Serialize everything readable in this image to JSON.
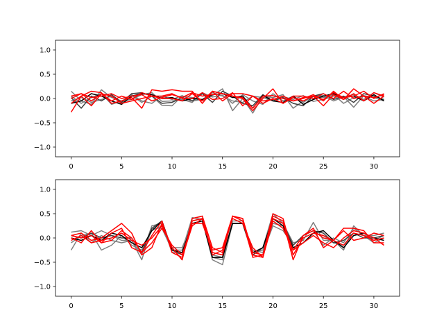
{
  "chart_data": [
    {
      "type": "line",
      "name": "top-panel",
      "xlim": [
        -1.55,
        32.55
      ],
      "ylim": [
        -1.2,
        1.2
      ],
      "xticks": [
        0,
        5,
        10,
        15,
        20,
        25,
        30
      ],
      "yticks": [
        -1.0,
        -0.5,
        0.0,
        0.5,
        1.0
      ],
      "xtick_labels": [
        "0",
        "5",
        "10",
        "15",
        "20",
        "25",
        "30"
      ],
      "ytick_labels": [
        "−1.0",
        "−0.5",
        "0.0",
        "0.5",
        "1.0"
      ],
      "x": [
        0,
        1,
        2,
        3,
        4,
        5,
        6,
        7,
        8,
        9,
        10,
        11,
        12,
        13,
        14,
        15,
        16,
        17,
        18,
        19,
        20,
        21,
        22,
        23,
        24,
        25,
        26,
        27,
        28,
        29,
        30,
        31
      ],
      "series": [
        {
          "color": "#7f7f7f",
          "values": [
            0.15,
            -0.05,
            -0.12,
            0.18,
            0.02,
            -0.05,
            0.06,
            -0.08,
            0.05,
            -0.14,
            -0.15,
            0.05,
            0.02,
            -0.05,
            0.06,
            0.2,
            -0.25,
            0.0,
            -0.3,
            0.05,
            0.02,
            0.08,
            -0.2,
            -0.05,
            0.04,
            0.06,
            -0.05,
            0.03,
            0.08,
            -0.02,
            0.12,
            0.03
          ]
        },
        {
          "color": "#7f7f7f",
          "values": [
            0.05,
            -0.1,
            0.02,
            0.1,
            -0.12,
            -0.05,
            -0.02,
            0.08,
            0.12,
            -0.06,
            -0.05,
            -0.02,
            -0.08,
            0.12,
            0.03,
            0.07,
            -0.1,
            0.08,
            -0.05,
            -0.12,
            0.1,
            -0.05,
            0.05,
            -0.08,
            0.05,
            0.02,
            0.08,
            -0.1,
            0.02,
            0.05,
            -0.05,
            -0.02
          ]
        },
        {
          "color": "#7f7f7f",
          "values": [
            -0.05,
            0.02,
            -0.08,
            -0.02,
            0.05,
            -0.1,
            0.08,
            -0.05,
            -0.1,
            0.05,
            -0.02,
            0.06,
            -0.05,
            -0.02,
            0.12,
            0.05,
            -0.05,
            -0.08,
            0.05,
            0.02,
            -0.05,
            0.04,
            -0.02,
            0.06,
            -0.06,
            -0.02,
            0.05,
            0.04,
            -0.18,
            0.06,
            0.02,
            -0.05
          ]
        },
        {
          "color": "#3f3f3f",
          "values": [
            0.02,
            -0.2,
            0.05,
            -0.05,
            0.08,
            -0.08,
            0.1,
            0.12,
            0.05,
            -0.1,
            -0.08,
            0.02,
            -0.05,
            0.1,
            -0.08,
            0.15,
            0.05,
            -0.1,
            -0.15,
            0.08,
            -0.05,
            0.02,
            -0.1,
            -0.15,
            0.05,
            0.1,
            -0.02,
            0.05,
            -0.08,
            0.1,
            0.05,
            -0.02
          ]
        },
        {
          "color": "#000000",
          "values": [
            -0.1,
            -0.05,
            0.1,
            0.05,
            -0.05,
            -0.12,
            0.05,
            0.1,
            0.08,
            0.0,
            0.02,
            -0.05,
            0.0,
            -0.02,
            0.08,
            0.1,
            0.02,
            0.05,
            -0.2,
            0.06,
            -0.05,
            -0.08,
            0.05,
            -0.12,
            -0.02,
            0.05,
            0.1,
            0.02,
            0.05,
            -0.05,
            0.08,
            -0.05
          ]
        },
        {
          "color": "#ff0000",
          "values": [
            0.05,
            0.1,
            0.02,
            0.05,
            0.1,
            0.0,
            0.05,
            0.08,
            -0.05,
            0.02,
            0.08,
            0.02,
            0.12,
            0.05,
            0.08,
            0.1,
            0.05,
            0.02,
            -0.2,
            0.05,
            0.06,
            0.0,
            -0.05,
            0.02,
            0.05,
            -0.02,
            0.12,
            0.02,
            0.05,
            0.15,
            0.0,
            0.1
          ]
        },
        {
          "color": "#ff0000",
          "values": [
            -0.28,
            0.05,
            0.15,
            0.12,
            -0.1,
            -0.05,
            0.02,
            -0.2,
            0.18,
            0.15,
            0.18,
            0.15,
            0.15,
            -0.1,
            0.15,
            -0.05,
            0.1,
            0.1,
            0.05,
            -0.05,
            -0.02,
            0.05,
            -0.05,
            0.0,
            0.08,
            -0.05,
            0.15,
            -0.02,
            0.2,
            0.05,
            0.02,
            0.08
          ]
        },
        {
          "color": "#ff0000",
          "values": [
            0.0,
            0.1,
            -0.05,
            0.1,
            0.05,
            -0.1,
            -0.05,
            0.0,
            0.05,
            0.0,
            0.0,
            -0.05,
            0.1,
            -0.05,
            0.15,
            0.1,
            0.05,
            0.0,
            -0.25,
            0.0,
            0.2,
            -0.1,
            0.05,
            0.05,
            0.0,
            0.1,
            0.0,
            0.15,
            0.0,
            0.05,
            -0.1,
            0.05
          ]
        },
        {
          "color": "#ff0000",
          "values": [
            -0.1,
            0.05,
            -0.15,
            0.1,
            -0.05,
            0.05,
            -0.02,
            0.12,
            0.05,
            0.05,
            0.1,
            0.0,
            0.0,
            0.12,
            -0.02,
            0.0,
            0.12,
            -0.15,
            0.05,
            -0.1,
            0.0,
            -0.1,
            0.02,
            -0.05,
            0.05,
            -0.15,
            0.08,
            -0.02,
            0.1,
            -0.05,
            0.12,
            0.05
          ]
        }
      ]
    },
    {
      "type": "line",
      "name": "bottom-panel",
      "xlim": [
        -1.55,
        32.55
      ],
      "ylim": [
        -1.2,
        1.2
      ],
      "xticks": [
        0,
        5,
        10,
        15,
        20,
        25,
        30
      ],
      "yticks": [
        -1.0,
        -0.5,
        0.0,
        0.5,
        1.0
      ],
      "xtick_labels": [
        "0",
        "5",
        "10",
        "15",
        "20",
        "25",
        "30"
      ],
      "ytick_labels": [
        "−1.0",
        "−0.5",
        "0.0",
        "0.5",
        "1.0"
      ],
      "x": [
        0,
        1,
        2,
        3,
        4,
        5,
        6,
        7,
        8,
        9,
        10,
        11,
        12,
        13,
        14,
        15,
        16,
        17,
        18,
        19,
        20,
        21,
        22,
        23,
        24,
        25,
        26,
        27,
        28,
        29,
        30,
        31
      ],
      "series": [
        {
          "color": "#7f7f7f",
          "values": [
            0.12,
            0.15,
            0.05,
            0.15,
            0.05,
            -0.05,
            -0.05,
            -0.45,
            0.2,
            0.2,
            -0.25,
            -0.25,
            0.42,
            0.38,
            -0.45,
            -0.55,
            0.3,
            0.3,
            -0.35,
            -0.2,
            0.5,
            0.3,
            -0.1,
            -0.05,
            0.32,
            -0.05,
            -0.05,
            -0.25,
            0.25,
            0.05,
            0.05,
            0.1
          ]
        },
        {
          "color": "#7f7f7f",
          "values": [
            -0.25,
            0.1,
            -0.1,
            0.05,
            -0.05,
            -0.1,
            -0.05,
            -0.35,
            0.25,
            0.3,
            -0.3,
            -0.3,
            0.4,
            0.45,
            -0.4,
            -0.45,
            0.35,
            0.35,
            -0.3,
            -0.25,
            0.3,
            0.25,
            -0.2,
            -0.1,
            0.1,
            0.05,
            -0.1,
            -0.15,
            0.05,
            0.1,
            -0.05,
            0.05
          ]
        },
        {
          "color": "#7f7f7f",
          "values": [
            -0.1,
            0.05,
            0.1,
            -0.25,
            -0.15,
            0.05,
            -0.15,
            -0.25,
            0.15,
            0.25,
            -0.2,
            -0.2,
            0.3,
            0.35,
            -0.35,
            -0.4,
            0.3,
            0.3,
            -0.25,
            -0.3,
            0.25,
            0.15,
            -0.15,
            0.05,
            0.15,
            -0.15,
            0.0,
            -0.1,
            0.2,
            0.05,
            -0.1,
            0.0
          ]
        },
        {
          "color": "#3f3f3f",
          "values": [
            0.05,
            0.0,
            0.1,
            0.0,
            0.05,
            0.0,
            0.0,
            -0.3,
            0.2,
            0.35,
            -0.25,
            -0.35,
            0.35,
            0.4,
            -0.4,
            -0.4,
            0.3,
            0.3,
            -0.35,
            -0.2,
            0.4,
            0.3,
            -0.15,
            0.05,
            0.15,
            0.1,
            -0.1,
            -0.05,
            0.1,
            0.0,
            0.0,
            0.05
          ]
        },
        {
          "color": "#000000",
          "values": [
            0.0,
            -0.05,
            0.05,
            -0.05,
            0.1,
            0.05,
            -0.1,
            -0.2,
            0.15,
            0.35,
            -0.25,
            -0.3,
            0.3,
            0.35,
            -0.4,
            -0.4,
            0.3,
            0.3,
            -0.3,
            -0.2,
            0.4,
            0.25,
            -0.2,
            -0.1,
            0.1,
            0.15,
            -0.05,
            -0.2,
            0.05,
            0.1,
            0.0,
            -0.05
          ]
        },
        {
          "color": "#ff0000",
          "values": [
            0.05,
            0.1,
            -0.05,
            0.0,
            0.15,
            0.3,
            0.1,
            -0.35,
            -0.2,
            0.3,
            -0.2,
            -0.45,
            0.4,
            0.45,
            -0.2,
            -0.3,
            0.45,
            0.35,
            -0.4,
            -0.35,
            0.45,
            0.35,
            -0.45,
            0.05,
            0.2,
            -0.2,
            -0.05,
            0.2,
            0.2,
            0.15,
            -0.1,
            -0.1
          ]
        },
        {
          "color": "#ff0000",
          "values": [
            0.0,
            -0.1,
            0.15,
            -0.1,
            0.1,
            0.2,
            -0.2,
            -0.3,
            0.05,
            0.35,
            -0.3,
            -0.4,
            0.25,
            0.4,
            -0.3,
            -0.35,
            0.45,
            0.4,
            -0.35,
            -0.4,
            0.4,
            0.3,
            -0.25,
            -0.1,
            0.05,
            -0.1,
            -0.2,
            0.0,
            0.15,
            0.1,
            0.0,
            -0.15
          ]
        },
        {
          "color": "#ff0000",
          "values": [
            -0.05,
            0.05,
            -0.1,
            -0.05,
            0.0,
            0.1,
            -0.05,
            -0.15,
            0.0,
            0.25,
            -0.2,
            -0.45,
            0.35,
            0.4,
            -0.35,
            -0.25,
            0.4,
            0.3,
            -0.2,
            -0.4,
            0.35,
            0.2,
            -0.25,
            0.05,
            0.15,
            0.0,
            -0.05,
            0.15,
            -0.05,
            0.0,
            0.1,
            0.05
          ]
        },
        {
          "color": "#ff0000",
          "values": [
            0.05,
            0.0,
            0.05,
            -0.1,
            -0.05,
            0.15,
            0.0,
            -0.3,
            -0.1,
            0.2,
            -0.15,
            -0.35,
            0.3,
            0.3,
            -0.25,
            -0.2,
            0.45,
            0.4,
            -0.3,
            -0.35,
            0.5,
            0.4,
            -0.35,
            0.0,
            0.1,
            0.05,
            -0.05,
            -0.15,
            0.1,
            0.05,
            -0.05,
            0.0
          ]
        }
      ]
    }
  ]
}
